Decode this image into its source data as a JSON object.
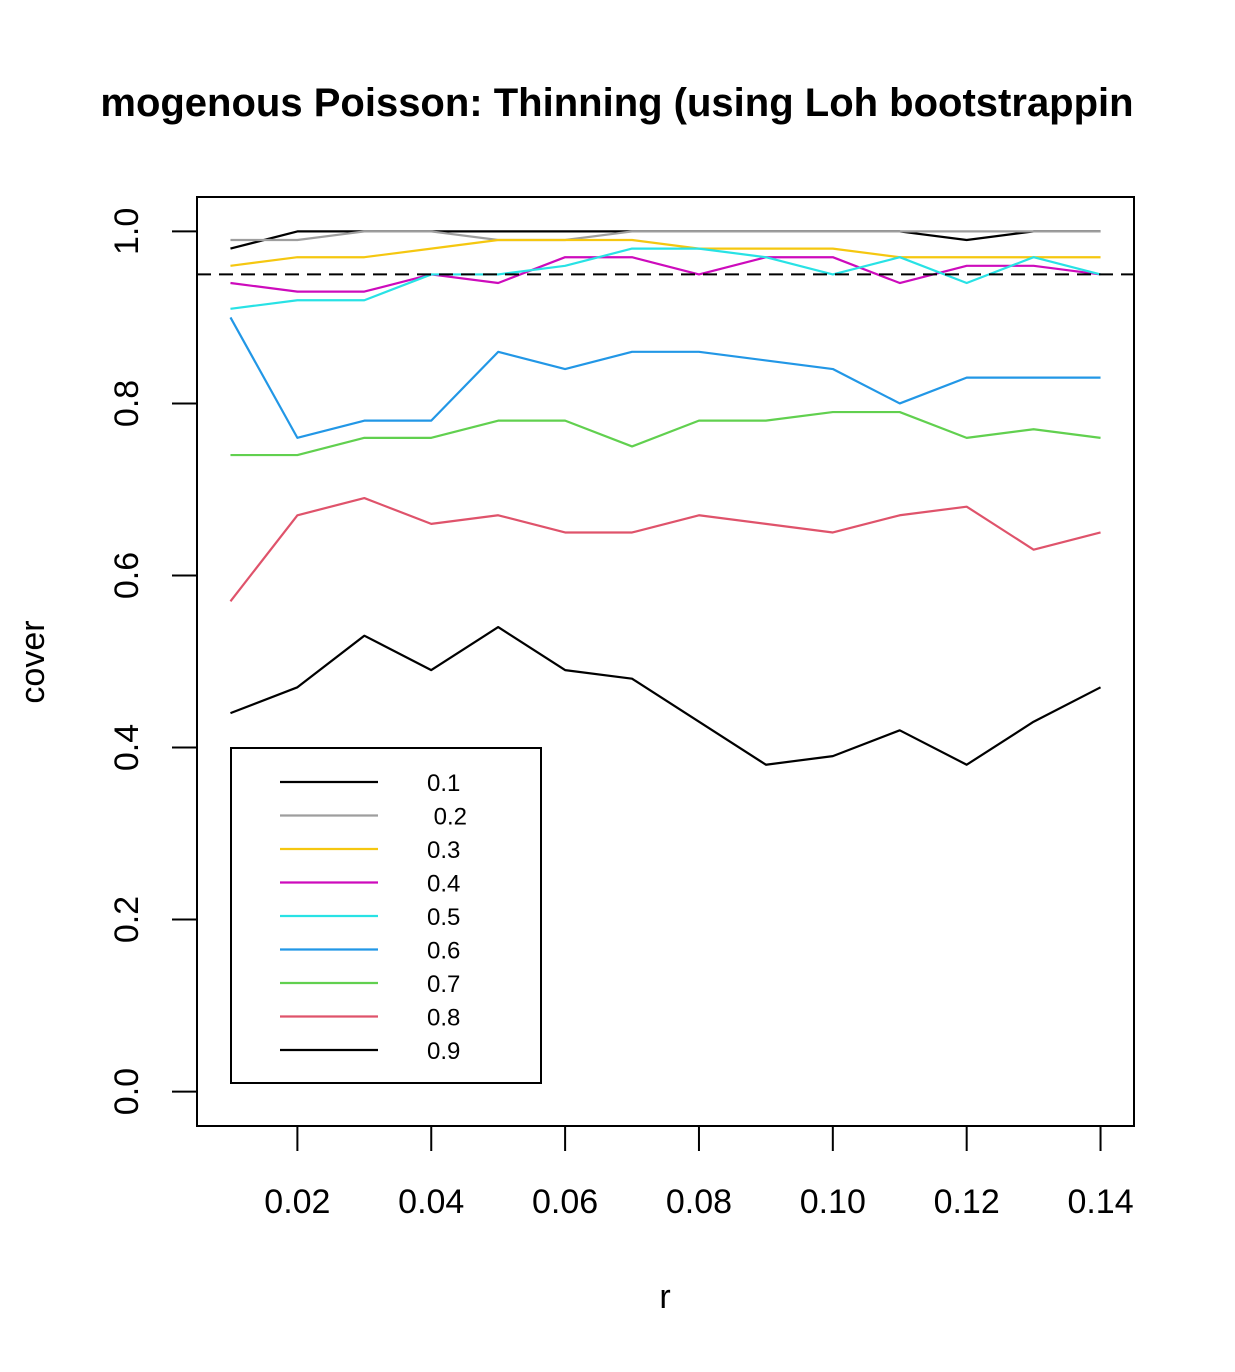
{
  "chart_data": {
    "type": "line",
    "title": "mogenous Poisson: Thinning (using Loh bootstrappin",
    "xlabel": "r",
    "ylabel": "cover",
    "x": [
      0.01,
      0.02,
      0.03,
      0.04,
      0.05,
      0.06,
      0.07,
      0.08,
      0.09,
      0.1,
      0.11,
      0.12,
      0.13,
      0.14
    ],
    "xlim": [
      0.005,
      0.145
    ],
    "ylim": [
      -0.04,
      1.04
    ],
    "xticks": [
      0.02,
      0.04,
      0.06,
      0.08,
      0.1,
      0.12,
      0.14
    ],
    "xtick_labels": [
      "0.02",
      "0.04",
      "0.06",
      "0.08",
      "0.10",
      "0.12",
      "0.14"
    ],
    "yticks": [
      0.0,
      0.2,
      0.4,
      0.6,
      0.8,
      1.0
    ],
    "ytick_labels": [
      "0.0",
      "0.2",
      "0.4",
      "0.6",
      "0.8",
      "1.0"
    ],
    "reference_line": {
      "y": 0.95,
      "style": "dashed",
      "color": "#000000"
    },
    "grid": false,
    "legend_position": "bottom-left",
    "series": [
      {
        "name": "0.1",
        "color": "#000000",
        "values": [
          0.98,
          1.0,
          1.0,
          1.0,
          1.0,
          1.0,
          1.0,
          1.0,
          1.0,
          1.0,
          1.0,
          0.99,
          1.0,
          1.0
        ]
      },
      {
        "name": " 0.2",
        "color": "#9E9E9E",
        "values": [
          0.99,
          0.99,
          1.0,
          1.0,
          0.99,
          0.99,
          1.0,
          1.0,
          1.0,
          1.0,
          1.0,
          1.0,
          1.0,
          1.0
        ]
      },
      {
        "name": "0.3",
        "color": "#F5C710",
        "values": [
          0.96,
          0.97,
          0.97,
          0.98,
          0.99,
          0.99,
          0.99,
          0.98,
          0.98,
          0.98,
          0.97,
          0.97,
          0.97,
          0.97
        ]
      },
      {
        "name": "0.4",
        "color": "#CD0BBC",
        "values": [
          0.94,
          0.93,
          0.93,
          0.95,
          0.94,
          0.97,
          0.97,
          0.95,
          0.97,
          0.97,
          0.94,
          0.96,
          0.96,
          0.95
        ]
      },
      {
        "name": "0.5",
        "color": "#28E2E5",
        "values": [
          0.91,
          0.92,
          0.92,
          0.95,
          0.95,
          0.96,
          0.98,
          0.98,
          0.97,
          0.95,
          0.97,
          0.94,
          0.97,
          0.95
        ]
      },
      {
        "name": "0.6",
        "color": "#2297E6",
        "values": [
          0.9,
          0.76,
          0.78,
          0.78,
          0.86,
          0.84,
          0.86,
          0.86,
          0.85,
          0.84,
          0.8,
          0.83,
          0.83,
          0.83
        ]
      },
      {
        "name": "0.7",
        "color": "#61D04F",
        "values": [
          0.74,
          0.74,
          0.76,
          0.76,
          0.78,
          0.78,
          0.75,
          0.78,
          0.78,
          0.79,
          0.79,
          0.76,
          0.77,
          0.76
        ]
      },
      {
        "name": "0.8",
        "color": "#DF536B",
        "values": [
          0.57,
          0.67,
          0.69,
          0.66,
          0.67,
          0.65,
          0.65,
          0.67,
          0.66,
          0.65,
          0.67,
          0.68,
          0.63,
          0.65
        ]
      },
      {
        "name": "0.9",
        "color": "#000000",
        "values": [
          0.44,
          0.47,
          0.53,
          0.49,
          0.54,
          0.49,
          0.48,
          0.43,
          0.38,
          0.39,
          0.42,
          0.38,
          0.43,
          0.47
        ]
      }
    ]
  }
}
